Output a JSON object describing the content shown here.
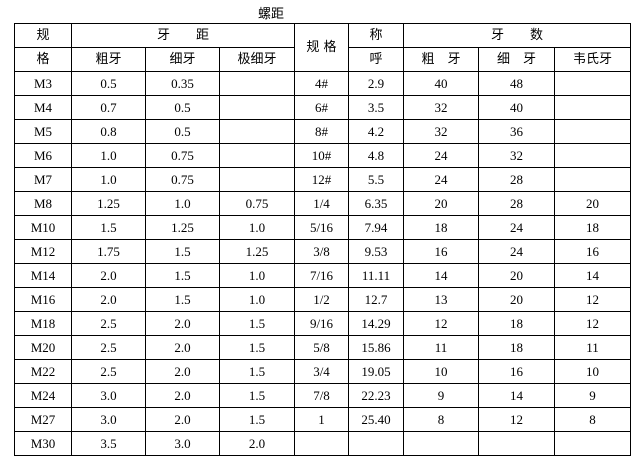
{
  "title": "螺距",
  "header": {
    "spec": [
      "规",
      "格"
    ],
    "pitch": "牙　　距",
    "coarse": "粗牙",
    "fine": "细牙",
    "extra_fine": "极细牙",
    "spec2": "规 格",
    "nominal": [
      "称",
      "呼"
    ],
    "tpi": "牙　　数",
    "tpi_coarse": "粗　牙",
    "tpi_fine": "细　牙",
    "whitworth": "韦氏牙"
  },
  "rows": [
    [
      "M3",
      "0.5",
      "0.35",
      "",
      "4#",
      "2.9",
      "40",
      "48",
      ""
    ],
    [
      "M4",
      "0.7",
      "0.5",
      "",
      "6#",
      "3.5",
      "32",
      "40",
      ""
    ],
    [
      "M5",
      "0.8",
      "0.5",
      "",
      "8#",
      "4.2",
      "32",
      "36",
      ""
    ],
    [
      "M6",
      "1.0",
      "0.75",
      "",
      "10#",
      "4.8",
      "24",
      "32",
      ""
    ],
    [
      "M7",
      "1.0",
      "0.75",
      "",
      "12#",
      "5.5",
      "24",
      "28",
      ""
    ],
    [
      "M8",
      "1.25",
      "1.0",
      "0.75",
      "1/4",
      "6.35",
      "20",
      "28",
      "20"
    ],
    [
      "M10",
      "1.5",
      "1.25",
      "1.0",
      "5/16",
      "7.94",
      "18",
      "24",
      "18"
    ],
    [
      "M12",
      "1.75",
      "1.5",
      "1.25",
      "3/8",
      "9.53",
      "16",
      "24",
      "16"
    ],
    [
      "M14",
      "2.0",
      "1.5",
      "1.0",
      "7/16",
      "11.11",
      "14",
      "20",
      "14"
    ],
    [
      "M16",
      "2.0",
      "1.5",
      "1.0",
      "1/2",
      "12.7",
      "13",
      "20",
      "12"
    ],
    [
      "M18",
      "2.5",
      "2.0",
      "1.5",
      "9/16",
      "14.29",
      "12",
      "18",
      "12"
    ],
    [
      "M20",
      "2.5",
      "2.0",
      "1.5",
      "5/8",
      "15.86",
      "11",
      "18",
      "11"
    ],
    [
      "M22",
      "2.5",
      "2.0",
      "1.5",
      "3/4",
      "19.05",
      "10",
      "16",
      "10"
    ],
    [
      "M24",
      "3.0",
      "2.0",
      "1.5",
      "7/8",
      "22.23",
      "9",
      "14",
      "9"
    ],
    [
      "M27",
      "3.0",
      "2.0",
      "1.5",
      "1",
      "25.40",
      "8",
      "12",
      "8"
    ],
    [
      "M30",
      "3.5",
      "3.0",
      "2.0",
      "",
      "",
      "",
      "",
      ""
    ]
  ]
}
